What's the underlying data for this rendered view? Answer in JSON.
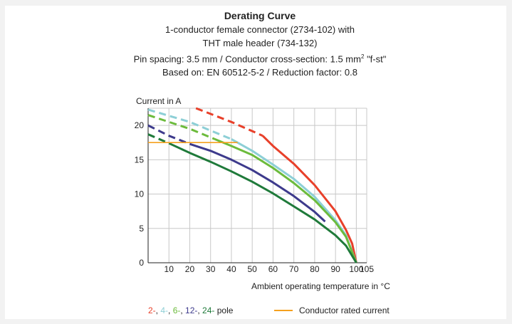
{
  "chart_data": {
    "type": "line",
    "title": "Derating Curve",
    "subtitle_lines": [
      "1-conductor female connector (2734-102) with",
      "THT male header (734-132)",
      "Pin spacing: 3.5 mm / Conductor cross-section: 1.5 mm",
      "Based on: EN 60512-5-2 / Reduction factor: 0.8"
    ],
    "subtitle_superscript": "2",
    "subtitle_suffix": "\"f-st\"",
    "ylabel": "Current in A",
    "xlabel": "Ambient operating temperature in °C",
    "xlim": [
      0,
      105
    ],
    "ylim": [
      0,
      22.5
    ],
    "x_ticks": [
      10,
      20,
      30,
      40,
      50,
      60,
      70,
      80,
      90,
      100,
      105
    ],
    "y_ticks": [
      5,
      10,
      15,
      20
    ],
    "x_grid": [
      10,
      20,
      30,
      40,
      50,
      60,
      70,
      80,
      90,
      100
    ],
    "y_grid": [
      5,
      10,
      15,
      20
    ],
    "series": [
      {
        "name": "2-",
        "color": "#e8402a",
        "dashed": [
          [
            23,
            22.5
          ],
          [
            40,
            20.5
          ],
          [
            55,
            18.5
          ]
        ],
        "solid": [
          [
            55,
            18.5
          ],
          [
            60,
            17
          ],
          [
            70,
            14.4
          ],
          [
            80,
            11.3
          ],
          [
            90,
            7.5
          ],
          [
            95,
            4.8
          ],
          [
            98,
            2.8
          ],
          [
            100,
            0
          ]
        ]
      },
      {
        "name": "4-",
        "color": "#8dcfd6",
        "dashed": [
          [
            0,
            22.3
          ],
          [
            20,
            20.5
          ],
          [
            40,
            18
          ]
        ],
        "solid": [
          [
            40,
            18
          ],
          [
            50,
            16.3
          ],
          [
            60,
            14.3
          ],
          [
            70,
            12.2
          ],
          [
            80,
            9.6
          ],
          [
            90,
            6.2
          ],
          [
            95,
            4
          ],
          [
            100,
            0
          ]
        ]
      },
      {
        "name": "6-",
        "color": "#6cbb3c",
        "dashed": [
          [
            0,
            21.5
          ],
          [
            20,
            19.5
          ],
          [
            32,
            18
          ]
        ],
        "solid": [
          [
            32,
            18
          ],
          [
            40,
            17
          ],
          [
            50,
            15.7
          ],
          [
            60,
            13.8
          ],
          [
            70,
            11.6
          ],
          [
            80,
            9.1
          ],
          [
            90,
            5.9
          ],
          [
            95,
            3.8
          ],
          [
            100,
            0
          ]
        ]
      },
      {
        "name": "12-",
        "color": "#3d3a8c",
        "dashed": [
          [
            0,
            20
          ],
          [
            10,
            18.5
          ],
          [
            20,
            17.3
          ]
        ],
        "solid": [
          [
            20,
            17.3
          ],
          [
            30,
            16.3
          ],
          [
            40,
            15
          ],
          [
            50,
            13.5
          ],
          [
            60,
            11.7
          ],
          [
            70,
            9.7
          ],
          [
            80,
            7.4
          ],
          [
            85,
            6
          ]
        ]
      },
      {
        "name": "24-",
        "color": "#1f7a3a",
        "dashed": [
          [
            0,
            18.7
          ],
          [
            10,
            17.4
          ]
        ],
        "solid": [
          [
            10,
            17.4
          ],
          [
            20,
            16
          ],
          [
            30,
            14.7
          ],
          [
            40,
            13.3
          ],
          [
            50,
            11.8
          ],
          [
            60,
            10.1
          ],
          [
            70,
            8.2
          ],
          [
            80,
            6.3
          ],
          [
            90,
            4
          ],
          [
            95,
            2.5
          ],
          [
            100,
            0
          ]
        ]
      },
      {
        "name": "Conductor rated current",
        "color": "#f5a01e",
        "dashed": [],
        "solid": [
          [
            0,
            17.5
          ],
          [
            43,
            17.5
          ]
        ]
      }
    ],
    "legend": {
      "poles": [
        {
          "text": "2-",
          "color": "#e8402a"
        },
        {
          "text": ", ",
          "color": "#222222"
        },
        {
          "text": "4-",
          "color": "#8dcfd6"
        },
        {
          "text": ", ",
          "color": "#222222"
        },
        {
          "text": "6-",
          "color": "#6cbb3c"
        },
        {
          "text": ", ",
          "color": "#222222"
        },
        {
          "text": "12-",
          "color": "#3d3a8c"
        },
        {
          "text": ", ",
          "color": "#222222"
        },
        {
          "text": "24-",
          "color": "#1f7a3a"
        },
        {
          "text": " pole",
          "color": "#222222"
        }
      ],
      "rated_label": "Conductor rated current",
      "rated_color": "#f5a01e"
    }
  }
}
